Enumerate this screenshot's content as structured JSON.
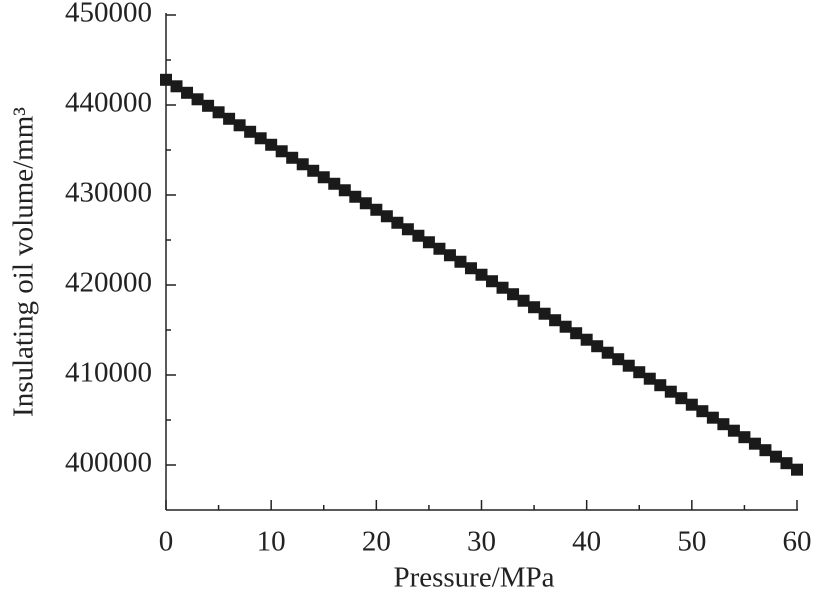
{
  "chart_data": {
    "type": "scatter",
    "xlabel": "Pressure/MPa",
    "ylabel": "Insulating oil volume/mm³",
    "x": [
      0,
      1,
      2,
      3,
      4,
      5,
      6,
      7,
      8,
      9,
      10,
      11,
      12,
      13,
      14,
      15,
      16,
      17,
      18,
      19,
      20,
      21,
      22,
      23,
      24,
      25,
      26,
      27,
      28,
      29,
      30,
      31,
      32,
      33,
      34,
      35,
      36,
      37,
      38,
      39,
      40,
      41,
      42,
      43,
      44,
      45,
      46,
      47,
      48,
      49,
      50,
      51,
      52,
      53,
      54,
      55,
      56,
      57,
      58,
      59,
      60
    ],
    "values": [
      442800,
      442078,
      441356,
      440634,
      439912,
      439190,
      438468,
      437746,
      437024,
      436302,
      435580,
      434858,
      434136,
      433414,
      432692,
      431970,
      431248,
      430526,
      429804,
      429082,
      428360,
      427638,
      426916,
      426194,
      425472,
      424750,
      424028,
      423306,
      422584,
      421862,
      421140,
      420418,
      419696,
      418974,
      418252,
      417530,
      416808,
      416086,
      415364,
      414642,
      413920,
      413198,
      412476,
      411754,
      411032,
      410310,
      409588,
      408866,
      408144,
      407422,
      406700,
      405978,
      405256,
      404534,
      403812,
      403090,
      402368,
      401646,
      400924,
      400202,
      399480
    ],
    "color": "#1a1a1a",
    "xlim": [
      0,
      60
    ],
    "xticks": [
      0,
      10,
      20,
      30,
      40,
      50,
      60
    ],
    "ylim": [
      395000,
      450000
    ],
    "yticks": [
      400000,
      410000,
      420000,
      430000,
      440000,
      450000
    ]
  }
}
